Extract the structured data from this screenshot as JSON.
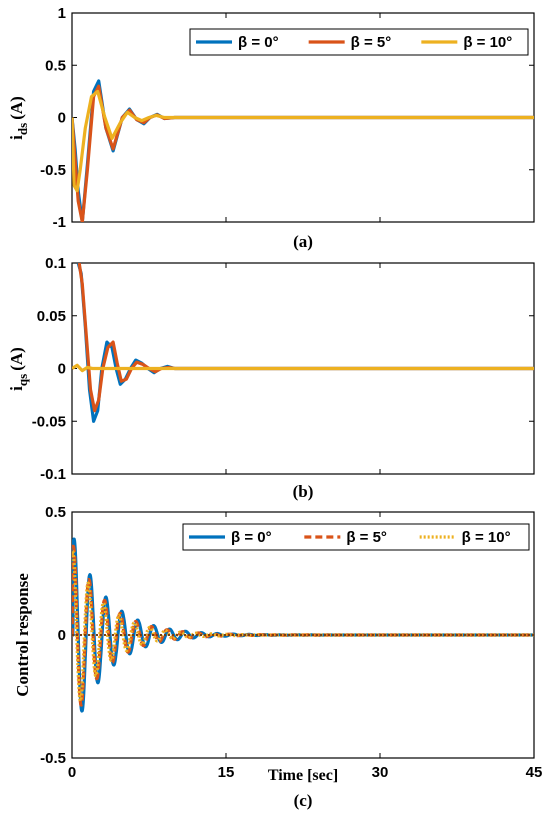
{
  "colors": {
    "beta0": "#0072BD",
    "beta5": "#D95319",
    "beta10": "#EDB120"
  },
  "chart_data": [
    {
      "type": "line",
      "caption": "(a)",
      "ylabel_main": "i",
      "ylabel_sub": "ds",
      "ylabel_unit": "(A)",
      "xlim": [
        0,
        45
      ],
      "ylim": [
        -1,
        1
      ],
      "yticks": [
        "1",
        "0.5",
        "0",
        "-0.5",
        "-1"
      ],
      "ytick_values": [
        1,
        0.5,
        0,
        -0.5,
        -1
      ],
      "legend": {
        "placement": "top-right",
        "style": "solid"
      },
      "series": [
        {
          "name": "β = 0°",
          "color": "#0072BD",
          "dash": "",
          "x": [
            0,
            0.3,
            0.6,
            1.0,
            1.5,
            2.1,
            2.6,
            3.3,
            4.0,
            4.9,
            5.6,
            6.3,
            7.0,
            7.6,
            8.3,
            9.0,
            10,
            11,
            12.5,
            45
          ],
          "y": [
            0,
            -0.3,
            -0.7,
            -1.0,
            -0.45,
            0.25,
            0.35,
            -0.1,
            -0.32,
            0.0,
            0.08,
            -0.02,
            -0.06,
            0.0,
            0.03,
            -0.01,
            0.0,
            0.0,
            0.0,
            0.0
          ]
        },
        {
          "name": "β = 5°",
          "color": "#D95319",
          "dash": "",
          "x": [
            0,
            0.3,
            0.6,
            1.0,
            1.5,
            2.1,
            2.6,
            3.3,
            4.0,
            4.9,
            5.6,
            6.3,
            7.0,
            7.6,
            8.3,
            9.0,
            10,
            11,
            12.5,
            45
          ],
          "y": [
            0,
            -0.4,
            -0.8,
            -1.0,
            -0.5,
            0.2,
            0.3,
            -0.1,
            -0.3,
            0.0,
            0.07,
            -0.02,
            -0.05,
            0.0,
            0.025,
            -0.01,
            0.0,
            0.0,
            0.0,
            0.0
          ]
        },
        {
          "name": "β = 10°",
          "color": "#EDB120",
          "dash": "",
          "x": [
            0,
            0.2,
            0.5,
            0.8,
            1.3,
            1.9,
            2.5,
            3.2,
            3.9,
            4.7,
            5.4,
            6.1,
            6.8,
            7.5,
            8.2,
            9.0,
            10,
            11,
            12.5,
            45
          ],
          "y": [
            0,
            -0.65,
            -0.7,
            -0.5,
            -0.1,
            0.2,
            0.25,
            0.0,
            -0.2,
            -0.05,
            0.05,
            0.0,
            -0.03,
            0.0,
            0.02,
            0.0,
            0.0,
            0.0,
            0.0,
            0.0
          ]
        }
      ]
    },
    {
      "type": "line",
      "caption": "(b)",
      "ylabel_main": "i",
      "ylabel_sub": "qs",
      "ylabel_unit": "(A)",
      "xlim": [
        0,
        45
      ],
      "ylim": [
        -0.1,
        0.1
      ],
      "yticks": [
        "0.1",
        "0.05",
        "0",
        "-0.05",
        "-0.1"
      ],
      "ytick_values": [
        0.1,
        0.05,
        0,
        -0.05,
        -0.1
      ],
      "legend": null,
      "series": [
        {
          "name": "β = 0°",
          "color": "#0072BD",
          "dash": "",
          "x": [
            0.6,
            0.9,
            1.3,
            1.7,
            2.1,
            2.5,
            2.9,
            3.4,
            3.9,
            4.3,
            4.7,
            5.2,
            5.7,
            6.2,
            6.8,
            7.4,
            8.0,
            8.6,
            9.3,
            10,
            11,
            12,
            45
          ],
          "y": [
            0.1,
            0.09,
            0.04,
            -0.02,
            -0.05,
            -0.04,
            0.0,
            0.025,
            0.02,
            0.0,
            -0.015,
            -0.01,
            0.0,
            0.008,
            0.005,
            0.0,
            -0.004,
            0.0,
            0.002,
            0.0,
            0.0,
            0.0,
            0.0
          ]
        },
        {
          "name": "β = 5°",
          "color": "#D95319",
          "dash": "",
          "x": [
            0.7,
            1.0,
            1.4,
            1.8,
            2.2,
            2.6,
            3.0,
            3.5,
            4.0,
            4.4,
            4.8,
            5.3,
            5.8,
            6.3,
            6.9,
            7.5,
            8.1,
            8.7,
            9.4,
            10,
            11,
            12,
            45
          ],
          "y": [
            0.1,
            0.08,
            0.03,
            -0.02,
            -0.04,
            -0.03,
            0.0,
            0.02,
            0.025,
            0.005,
            -0.012,
            -0.01,
            0.0,
            0.006,
            0.004,
            0.0,
            -0.003,
            0.0,
            0.001,
            0.0,
            0.0,
            0.0,
            0.0
          ]
        },
        {
          "name": "β = 10°",
          "color": "#EDB120",
          "dash": "",
          "x": [
            0,
            0.5,
            1.0,
            1.5,
            2.0,
            2.5,
            3.0,
            4.0,
            45
          ],
          "y": [
            0.0,
            0.003,
            -0.002,
            0.001,
            0.0,
            0.0,
            0.0,
            0.0,
            0.0
          ]
        }
      ]
    },
    {
      "type": "line",
      "caption": "(c)",
      "ylabel_main": "Control response",
      "ylabel_sub": "",
      "ylabel_unit": "",
      "xlabel": "Time [sec]",
      "xlim": [
        0,
        45
      ],
      "ylim": [
        -0.5,
        0.5
      ],
      "xticks": [
        "0",
        "15",
        "30",
        "45"
      ],
      "xtick_values": [
        0,
        15,
        30,
        45
      ],
      "yticks": [
        "0.5",
        "0",
        "-0.5"
      ],
      "ytick_values": [
        0.5,
        0,
        -0.5
      ],
      "legend": {
        "placement": "top-right",
        "style": "dashed"
      },
      "series": [
        {
          "name": "β = 0°",
          "color": "#0072BD",
          "dash": "",
          "amp": 0.4,
          "decay": 0.3,
          "period": 1.55,
          "phase": 0.12
        },
        {
          "name": "β = 5°",
          "color": "#D95319",
          "dash": "7 4",
          "amp": 0.37,
          "decay": 0.31,
          "period": 1.52,
          "phase": 0.06
        },
        {
          "name": "β = 10°",
          "color": "#EDB120",
          "dash": "2 2",
          "amp": 0.35,
          "decay": 0.32,
          "period": 1.5,
          "phase": 0.0
        }
      ]
    }
  ]
}
